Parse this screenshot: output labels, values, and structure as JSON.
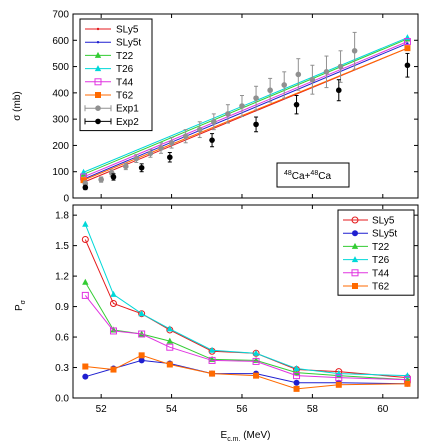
{
  "chart_data": [
    {
      "type": "line",
      "ylabel": "σ (mb)",
      "xlim": [
        51.2,
        61.0
      ],
      "ylim": [
        0,
        700
      ],
      "xticks": [
        52,
        54,
        56,
        58,
        60
      ],
      "yticks": [
        0,
        100,
        200,
        300,
        400,
        500,
        600,
        700
      ],
      "legend_position": "top-left",
      "annotation": "48Ca+48Ca",
      "x": [
        51.5,
        60.7
      ],
      "series": [
        {
          "name": "SLy5",
          "color": "#e41a1c",
          "marker": "dot",
          "values": [
            60,
            570
          ]
        },
        {
          "name": "SLy5t",
          "color": "#1f1fd0",
          "marker": "dot",
          "values": [
            72,
            588
          ]
        },
        {
          "name": "T22",
          "color": "#33cc33",
          "marker": "triangle",
          "values": [
            90,
            605
          ]
        },
        {
          "name": "T26",
          "color": "#00d8d8",
          "marker": "triangle",
          "values": [
            98,
            610
          ]
        },
        {
          "name": "T44",
          "color": "#e033e0",
          "marker": "open-square",
          "values": [
            80,
            595
          ]
        },
        {
          "name": "T62",
          "color": "#ff6a00",
          "marker": "filled-square",
          "values": [
            68,
            570
          ]
        }
      ],
      "points": [
        {
          "name": "Exp1",
          "color": "#909090",
          "x": [
            51.55,
            52.0,
            52.3,
            52.7,
            53.0,
            53.4,
            53.7,
            54.0,
            54.4,
            54.8,
            55.2,
            55.6,
            56.0,
            56.4,
            56.8,
            57.2,
            57.6,
            58.0,
            58.4,
            58.8,
            59.2
          ],
          "y": [
            55,
            70,
            95,
            120,
            150,
            170,
            190,
            210,
            235,
            260,
            290,
            320,
            350,
            380,
            410,
            430,
            470,
            450,
            480,
            500,
            560
          ],
          "err": [
            10,
            10,
            12,
            12,
            15,
            15,
            20,
            20,
            25,
            30,
            30,
            35,
            40,
            45,
            45,
            50,
            60,
            55,
            60,
            60,
            70
          ]
        },
        {
          "name": "Exp2",
          "color": "#000000",
          "x": [
            51.55,
            52.35,
            53.15,
            53.95,
            55.15,
            56.4,
            57.55,
            58.75,
            60.7
          ],
          "y": [
            40,
            80,
            115,
            155,
            220,
            280,
            355,
            410,
            505
          ],
          "err": [
            8,
            12,
            15,
            18,
            25,
            28,
            35,
            40,
            45
          ]
        }
      ]
    },
    {
      "type": "line",
      "xlabel": "E",
      "xlabel_sub": "c.m.",
      "xlabel_unit": " (MeV)",
      "ylabel": "P",
      "ylabel_sub": "σ",
      "xlim": [
        51.2,
        61.0
      ],
      "ylim": [
        0,
        1.9
      ],
      "xticks": [
        52,
        54,
        56,
        58,
        60
      ],
      "yticks": [
        0.0,
        0.3,
        0.6,
        0.9,
        1.2,
        1.5,
        1.8
      ],
      "legend_position": "top-right",
      "x": [
        51.55,
        52.35,
        53.15,
        53.95,
        55.15,
        56.4,
        57.55,
        58.75,
        60.7
      ],
      "series": [
        {
          "name": "SLy5",
          "color": "#e41a1c",
          "marker": "open-circle",
          "values": [
            1.56,
            0.93,
            0.83,
            0.67,
            0.46,
            0.44,
            0.28,
            0.26,
            0.2
          ]
        },
        {
          "name": "SLy5t",
          "color": "#1f1fd0",
          "marker": "filled-circle",
          "values": [
            0.21,
            0.29,
            0.37,
            0.34,
            0.24,
            0.24,
            0.15,
            0.15,
            0.14
          ]
        },
        {
          "name": "T22",
          "color": "#33cc33",
          "marker": "triangle",
          "values": [
            1.14,
            0.67,
            0.63,
            0.56,
            0.38,
            0.37,
            0.25,
            0.22,
            0.18
          ]
        },
        {
          "name": "T26",
          "color": "#00d8d8",
          "marker": "triangle",
          "values": [
            1.71,
            1.02,
            0.83,
            0.68,
            0.47,
            0.44,
            0.29,
            0.24,
            0.22
          ]
        },
        {
          "name": "T44",
          "color": "#e033e0",
          "marker": "open-square",
          "values": [
            1.01,
            0.66,
            0.63,
            0.5,
            0.37,
            0.36,
            0.22,
            0.2,
            0.18
          ]
        },
        {
          "name": "T62",
          "color": "#ff6a00",
          "marker": "filled-square",
          "values": [
            0.31,
            0.28,
            0.42,
            0.33,
            0.24,
            0.22,
            0.09,
            0.13,
            0.14
          ]
        }
      ]
    }
  ]
}
